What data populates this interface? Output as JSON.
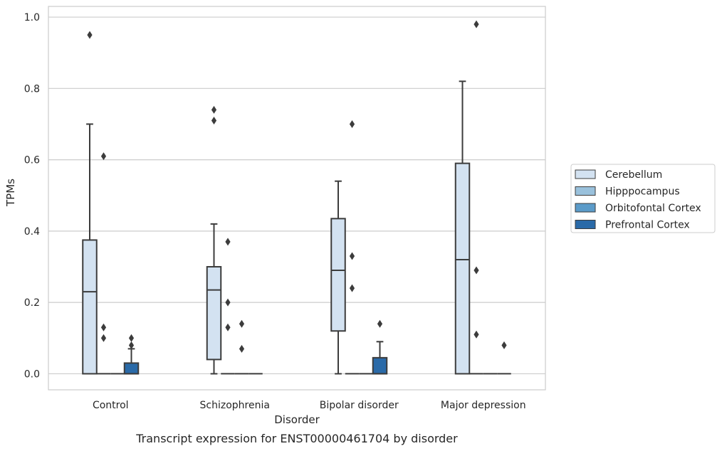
{
  "chart_data": {
    "type": "box",
    "title": "",
    "caption": "Transcript expression for ENST00000461704 by disorder",
    "xlabel": "Disorder",
    "ylabel": "TPMs",
    "ylim": [
      -0.045,
      1.03
    ],
    "yticks": [
      0.0,
      0.2,
      0.4,
      0.6,
      0.8,
      1.0
    ],
    "ytick_labels": [
      "0.0",
      "0.2",
      "0.4",
      "0.6",
      "0.8",
      "1.0"
    ],
    "grid": true,
    "legend_position": "right",
    "categories": [
      "Control",
      "Schizophrenia",
      "Bipolar disorder",
      "Major depression"
    ],
    "series": [
      {
        "name": "Cerebellum",
        "color": "#d3e2f1",
        "boxes": [
          {
            "low": 0.0,
            "q1": 0.0,
            "median": 0.23,
            "q3": 0.375,
            "high": 0.7,
            "outliers": [
              0.95
            ]
          },
          {
            "low": 0.0,
            "q1": 0.04,
            "median": 0.235,
            "q3": 0.3,
            "high": 0.42,
            "outliers": [
              0.74,
              0.71
            ]
          },
          {
            "low": 0.0,
            "q1": 0.12,
            "median": 0.29,
            "q3": 0.435,
            "high": 0.54,
            "outliers": []
          },
          {
            "low": 0.0,
            "q1": 0.0,
            "median": 0.32,
            "q3": 0.59,
            "high": 0.82,
            "outliers": []
          }
        ]
      },
      {
        "name": "Hipppocampus",
        "color": "#9ac1dc",
        "boxes": [
          {
            "low": 0.0,
            "q1": 0.0,
            "median": 0.0,
            "q3": 0.0,
            "high": 0.0,
            "outliers": [
              0.61,
              0.13,
              0.1
            ]
          },
          {
            "low": 0.0,
            "q1": 0.0,
            "median": 0.0,
            "q3": 0.0,
            "high": 0.0,
            "outliers": [
              0.37,
              0.2,
              0.13
            ]
          },
          {
            "low": 0.0,
            "q1": 0.0,
            "median": 0.0,
            "q3": 0.0,
            "high": 0.0,
            "outliers": [
              0.7,
              0.33,
              0.24
            ]
          },
          {
            "low": 0.0,
            "q1": 0.0,
            "median": 0.0,
            "q3": 0.0,
            "high": 0.0,
            "outliers": [
              0.98,
              0.29,
              0.11
            ]
          }
        ]
      },
      {
        "name": "Orbitofontal Cortex",
        "color": "#5b9bc9",
        "boxes": [
          {
            "low": 0.0,
            "q1": 0.0,
            "median": 0.0,
            "q3": 0.0,
            "high": 0.0,
            "outliers": []
          },
          {
            "low": 0.0,
            "q1": 0.0,
            "median": 0.0,
            "q3": 0.0,
            "high": 0.0,
            "outliers": [
              0.14,
              0.07
            ]
          },
          {
            "low": 0.0,
            "q1": 0.0,
            "median": 0.0,
            "q3": 0.0,
            "high": 0.0,
            "outliers": []
          },
          {
            "low": 0.0,
            "q1": 0.0,
            "median": 0.0,
            "q3": 0.0,
            "high": 0.0,
            "outliers": []
          }
        ]
      },
      {
        "name": "Prefrontal Cortex",
        "color": "#2a6aa8",
        "boxes": [
          {
            "low": 0.0,
            "q1": 0.0,
            "median": 0.0,
            "q3": 0.03,
            "high": 0.07,
            "outliers": [
              0.1,
              0.08
            ]
          },
          {
            "low": 0.0,
            "q1": 0.0,
            "median": 0.0,
            "q3": 0.0,
            "high": 0.0,
            "outliers": []
          },
          {
            "low": 0.0,
            "q1": 0.0,
            "median": 0.0,
            "q3": 0.045,
            "high": 0.09,
            "outliers": [
              0.14
            ]
          },
          {
            "low": 0.0,
            "q1": 0.0,
            "median": 0.0,
            "q3": 0.0,
            "high": 0.0,
            "outliers": [
              0.08
            ]
          }
        ]
      }
    ]
  }
}
